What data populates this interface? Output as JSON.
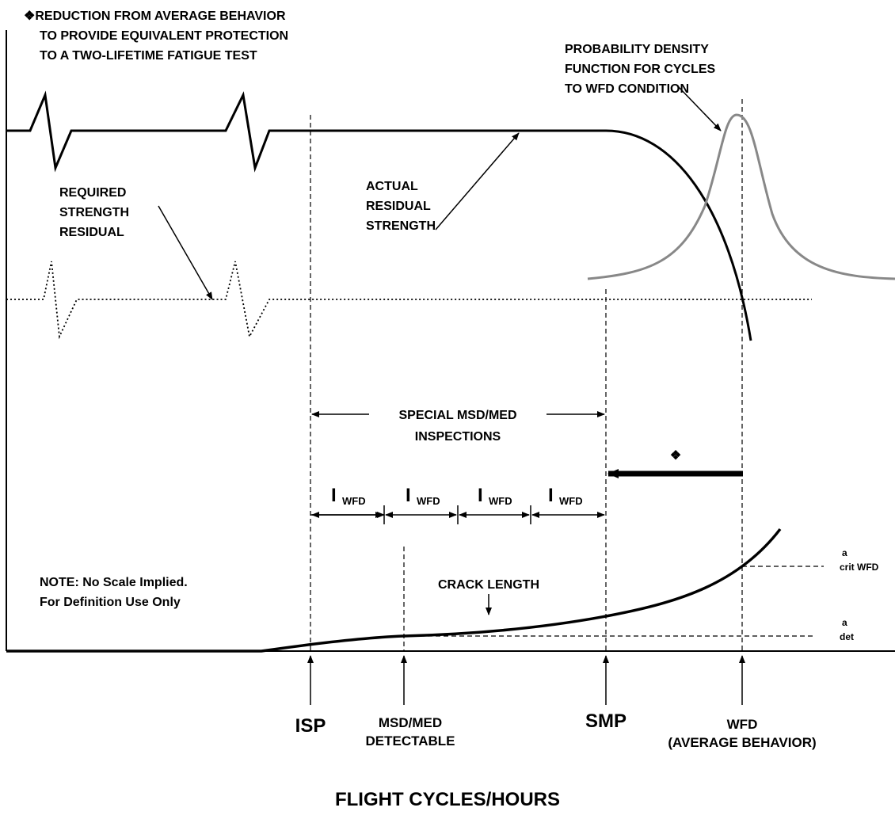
{
  "note_top": [
    "❖REDUCTION FROM AVERAGE BEHAVIOR",
    "TO PROVIDE EQUIVALENT PROTECTION",
    "TO A TWO-LIFETIME FATIGUE TEST"
  ],
  "pdf_label": [
    "PROBABILITY DENSITY",
    "FUNCTION FOR CYCLES",
    "TO WFD CONDITION"
  ],
  "required_label": [
    "REQUIRED",
    "STRENGTH",
    "RESIDUAL"
  ],
  "actual_label": [
    "ACTUAL",
    "RESIDUAL",
    "STRENGTH"
  ],
  "special_label": [
    "SPECIAL MSD/MED",
    "INSPECTIONS"
  ],
  "reduction_symbol": "❖",
  "intervals": [
    {
      "main": "I",
      "sub": "WFD"
    },
    {
      "main": "I",
      "sub": "WFD"
    },
    {
      "main": "I",
      "sub": "WFD"
    },
    {
      "main": "I",
      "sub": "WFD"
    }
  ],
  "note": [
    "NOTE:  No Scale Implied.",
    "For Definition Use Only"
  ],
  "crack_label": "CRACK LENGTH",
  "a_crit": {
    "main": "a",
    "sub": "crit WFD"
  },
  "a_det": {
    "main": "a",
    "sub": "det"
  },
  "x_markers": {
    "isp": "ISP",
    "msd": [
      "MSD/MED",
      "DETECTABLE"
    ],
    "smp": "SMP",
    "wfd": "WFD",
    "wfd_note": "(AVERAGE BEHAVIOR)"
  },
  "axis_title": "FLIGHT CYCLES/HOURS"
}
